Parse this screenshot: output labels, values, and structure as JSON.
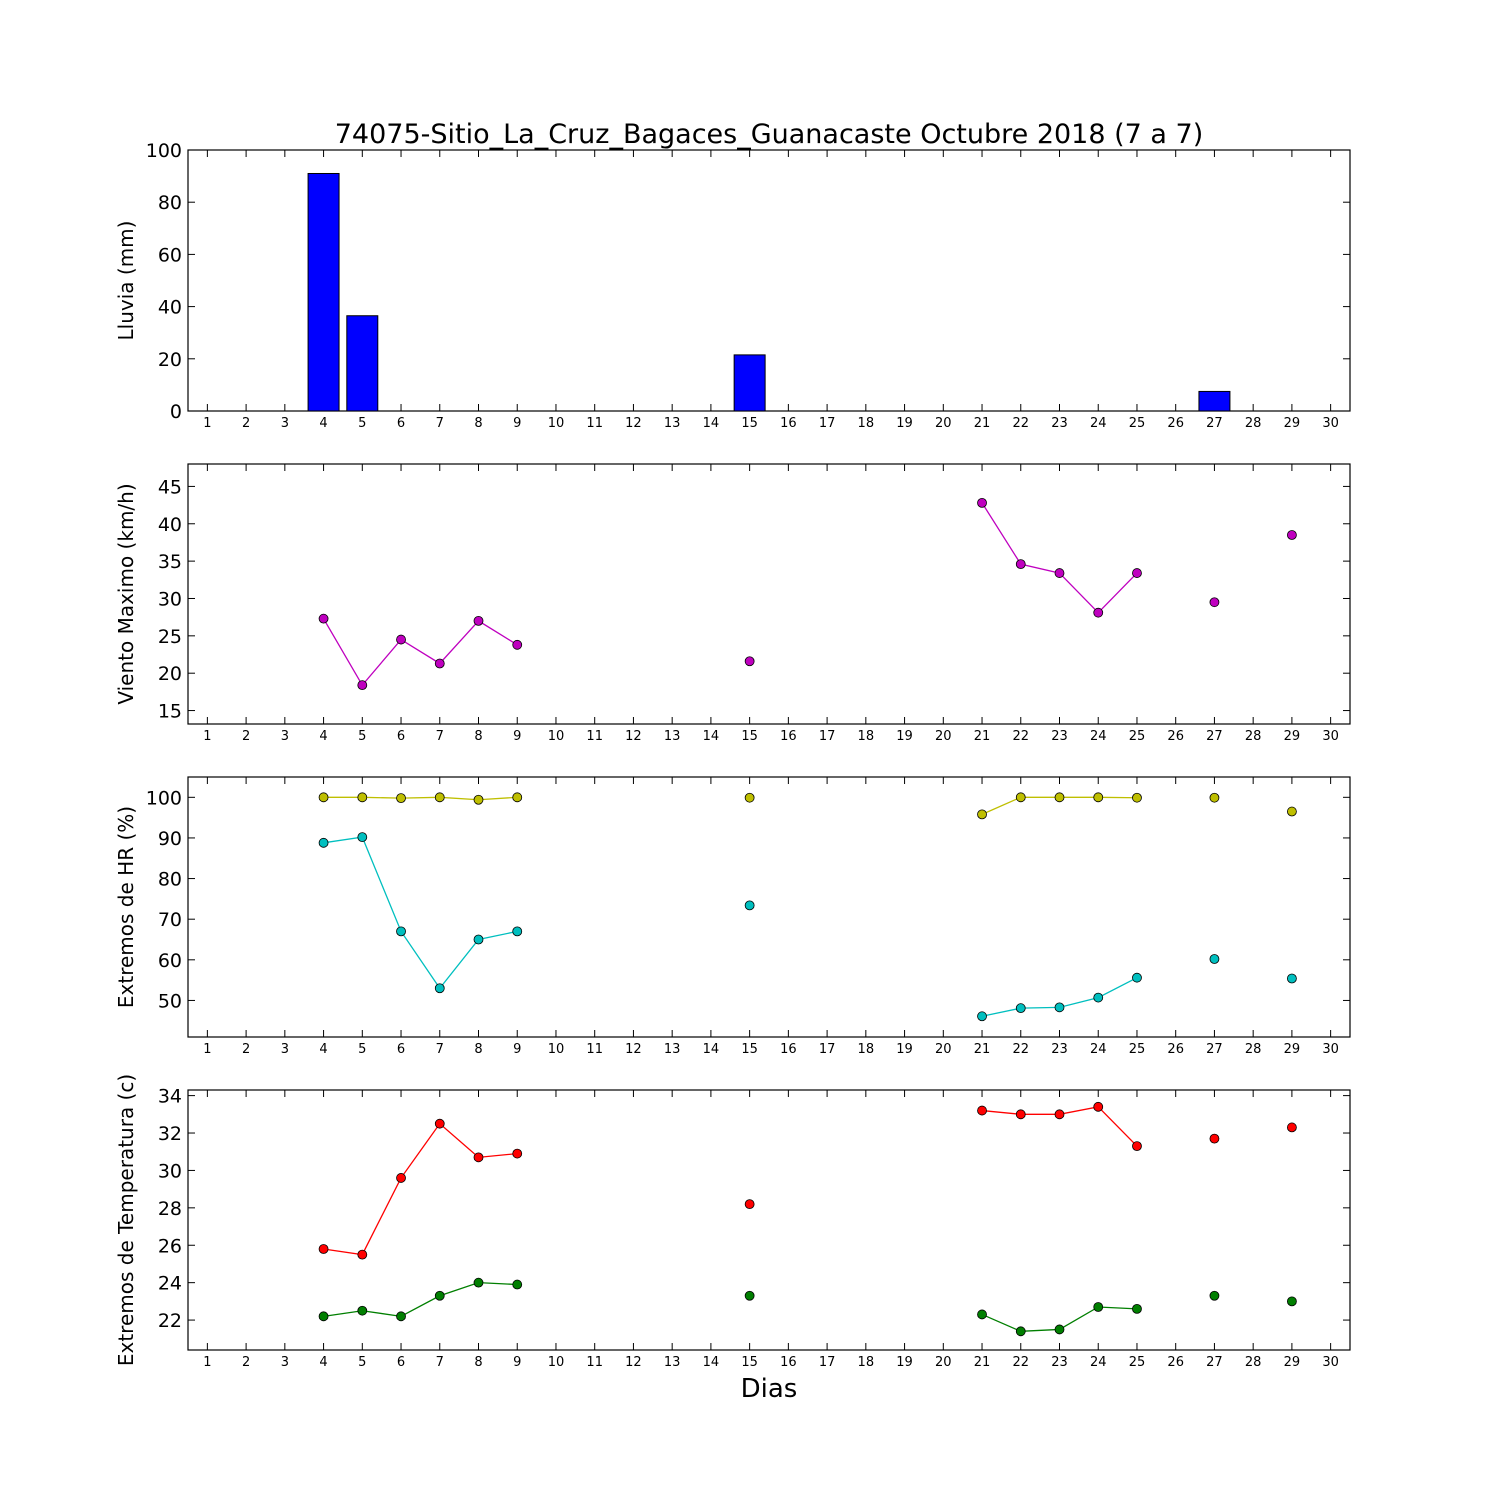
{
  "chart_data": {
    "title": "74075-Sitio_La_Cruz_Bagaces_Guanacaste Octubre 2018  (7 a 7)",
    "xlabel": "Dias",
    "x_ticks": [
      1,
      2,
      3,
      4,
      5,
      6,
      7,
      8,
      9,
      10,
      11,
      12,
      13,
      14,
      15,
      16,
      17,
      18,
      19,
      20,
      21,
      22,
      23,
      24,
      25,
      26,
      27,
      28,
      29,
      30
    ],
    "xlim": [
      0.5,
      30.5
    ],
    "panels": [
      {
        "id": "lluvia",
        "type": "bar",
        "ylabel": "Lluvia (mm)",
        "ylim": [
          0,
          100
        ],
        "yticks": [
          0,
          20,
          40,
          60,
          80,
          100
        ],
        "bar_color": "#0000ff",
        "x": [
          4,
          5,
          6,
          7,
          8,
          15,
          27
        ],
        "values": [
          91,
          36.5,
          0,
          0,
          0,
          21.5,
          7.5
        ]
      },
      {
        "id": "viento",
        "type": "line",
        "ylabel": "Viento Maximo (km/h)",
        "ylim": [
          13.2,
          48
        ],
        "yticks": [
          15,
          20,
          25,
          30,
          35,
          40,
          45
        ],
        "series": [
          {
            "color": "#bf00bf",
            "x": [
              4,
              5,
              6,
              7,
              8,
              9,
              15,
              21,
              22,
              23,
              24,
              25,
              27,
              29
            ],
            "values": [
              27.3,
              18.4,
              24.5,
              21.3,
              27,
              23.8,
              21.6,
              42.8,
              34.6,
              33.4,
              28.1,
              33.4,
              29.5,
              38.5
            ],
            "connected": [
              [
                4,
                5,
                6,
                7,
                8,
                9
              ],
              [
                15
              ],
              [
                21,
                22,
                23,
                24,
                25
              ],
              [
                27
              ],
              [
                29
              ]
            ]
          }
        ]
      },
      {
        "id": "humedad",
        "type": "line",
        "ylabel": "Extremos de HR (%)",
        "ylim": [
          41,
          105
        ],
        "yticks": [
          50,
          60,
          70,
          80,
          90,
          100
        ],
        "series": [
          {
            "color": "#bfbf00",
            "x": [
              4,
              5,
              6,
              7,
              8,
              9,
              15,
              21,
              22,
              23,
              24,
              25,
              27,
              29
            ],
            "values": [
              100,
              100,
              99.8,
              100,
              99.4,
              100,
              99.9,
              95.8,
              100,
              100,
              100,
              99.9,
              99.9,
              96.5
            ],
            "connected": [
              [
                4,
                5,
                6,
                7,
                8,
                9
              ],
              [
                15
              ],
              [
                21,
                22,
                23,
                24,
                25
              ],
              [
                27
              ],
              [
                29
              ]
            ]
          },
          {
            "color": "#00bfbf",
            "x": [
              4,
              5,
              6,
              7,
              8,
              9,
              15,
              21,
              22,
              23,
              24,
              25,
              27,
              29
            ],
            "values": [
              88.8,
              90.2,
              67,
              53,
              65,
              67,
              73.4,
              46.1,
              48.1,
              48.3,
              50.7,
              55.6,
              60.2,
              55.4
            ],
            "connected": [
              [
                4,
                5,
                6,
                7,
                8,
                9
              ],
              [
                15
              ],
              [
                21,
                22,
                23,
                24,
                25
              ],
              [
                27
              ],
              [
                29
              ]
            ]
          }
        ]
      },
      {
        "id": "temperatura",
        "type": "line",
        "ylabel": "Extremos de Temperatura (c)",
        "ylim": [
          20.4,
          34.3
        ],
        "yticks": [
          22,
          24,
          26,
          28,
          30,
          32,
          34
        ],
        "series": [
          {
            "color": "#ff0000",
            "x": [
              4,
              5,
              6,
              7,
              8,
              9,
              15,
              21,
              22,
              23,
              24,
              25,
              27,
              29
            ],
            "values": [
              25.8,
              25.5,
              29.6,
              32.5,
              30.7,
              30.9,
              28.2,
              33.2,
              33,
              33,
              33.4,
              31.3,
              31.7,
              32.3
            ],
            "connected": [
              [
                4,
                5,
                6,
                7,
                8,
                9
              ],
              [
                15
              ],
              [
                21,
                22,
                23,
                24,
                25
              ],
              [
                27
              ],
              [
                29
              ]
            ]
          },
          {
            "color": "#007f00",
            "x": [
              4,
              5,
              6,
              7,
              8,
              9,
              15,
              21,
              22,
              23,
              24,
              25,
              27,
              29
            ],
            "values": [
              22.2,
              22.5,
              22.2,
              23.3,
              24,
              23.9,
              23.3,
              22.3,
              21.4,
              21.5,
              22.7,
              22.6,
              23.3,
              23
            ],
            "connected": [
              [
                4,
                5,
                6,
                7,
                8,
                9
              ],
              [
                15
              ],
              [
                21,
                22,
                23,
                24,
                25
              ],
              [
                27
              ],
              [
                29
              ]
            ]
          }
        ]
      }
    ]
  }
}
